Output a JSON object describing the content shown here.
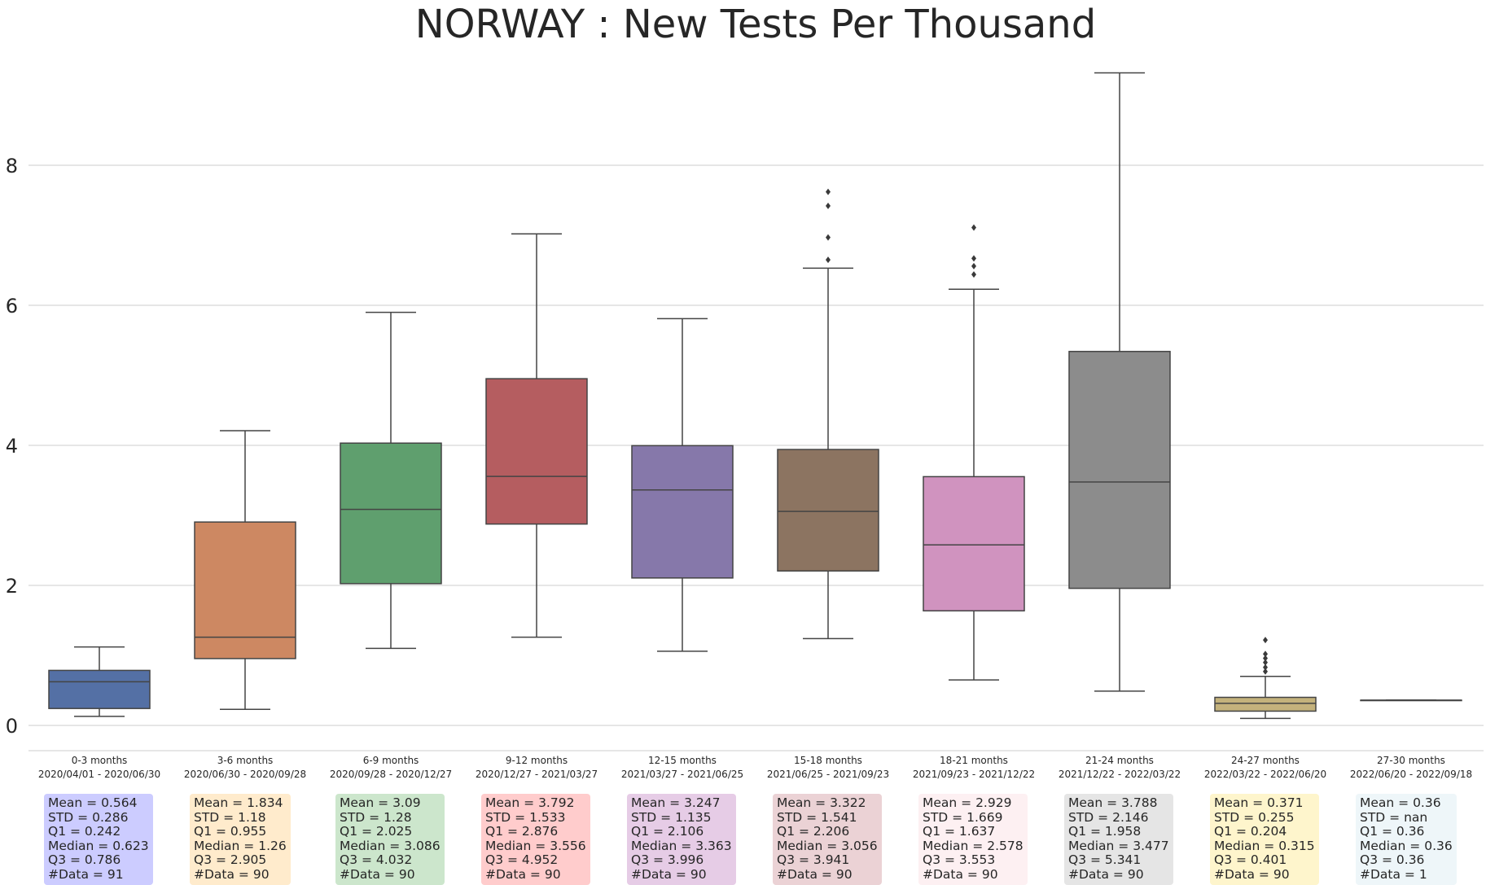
{
  "chart_data": {
    "type": "box",
    "title": "NORWAY : New Tests Per Thousand",
    "xlabel": "",
    "ylabel": "",
    "ylim": [
      -0.3,
      9.7
    ],
    "yticks": [
      "0",
      "2",
      "4",
      "6",
      "8"
    ],
    "grid": "horizontal",
    "categories": [
      {
        "label": "0-3 months",
        "range": "2020/04/01 - 2020/06/30",
        "color": "#5470a5",
        "whisker_low": 0.13,
        "q1": 0.242,
        "median": 0.623,
        "q3": 0.786,
        "whisker_high": 1.12,
        "outliers": [],
        "stats": {
          "mean": "Mean = 0.564",
          "std": "STD = 0.286",
          "q1": "Q1 = 0.242",
          "median": "Median = 0.623",
          "q3": "Q3 = 0.786",
          "count": "#Data = 91"
        },
        "box_color": "#ccccff"
      },
      {
        "label": "3-6 months",
        "range": "2020/06/30 - 2020/09/28",
        "color": "#cd8862",
        "whisker_low": 0.23,
        "q1": 0.955,
        "median": 1.26,
        "q3": 2.905,
        "whisker_high": 4.21,
        "outliers": [],
        "stats": {
          "mean": "Mean = 1.834",
          "std": "STD = 1.18",
          "q1": "Q1 = 0.955",
          "median": "Median = 1.26",
          "q3": "Q3 = 2.905",
          "count": "#Data = 90"
        },
        "box_color": "#ffebcc"
      },
      {
        "label": "6-9 months",
        "range": "2020/09/28 - 2020/12/27",
        "color": "#5f9f6e",
        "whisker_low": 1.1,
        "q1": 2.025,
        "median": 3.086,
        "q3": 4.032,
        "whisker_high": 5.9,
        "outliers": [],
        "stats": {
          "mean": "Mean = 3.09",
          "std": "STD = 1.28",
          "q1": "Q1 = 2.025",
          "median": "Median = 3.086",
          "q3": "Q3 = 4.032",
          "count": "#Data = 90"
        },
        "box_color": "#cce6cc"
      },
      {
        "label": "9-12 months",
        "range": "2020/12/27 - 2021/03/27",
        "color": "#b55d60",
        "whisker_low": 1.26,
        "q1": 2.876,
        "median": 3.556,
        "q3": 4.952,
        "whisker_high": 7.02,
        "outliers": [],
        "stats": {
          "mean": "Mean = 3.792",
          "std": "STD = 1.533",
          "q1": "Q1 = 2.876",
          "median": "Median = 3.556",
          "q3": "Q3 = 4.952",
          "count": "#Data = 90"
        },
        "box_color": "#ffcccc"
      },
      {
        "label": "12-15 months",
        "range": "2021/03/27 - 2021/06/25",
        "color": "#8678aa",
        "whisker_low": 1.06,
        "q1": 2.106,
        "median": 3.363,
        "q3": 3.996,
        "whisker_high": 5.81,
        "outliers": [],
        "stats": {
          "mean": "Mean = 3.247",
          "std": "STD = 1.135",
          "q1": "Q1 = 2.106",
          "median": "Median = 3.363",
          "q3": "Q3 = 3.996",
          "count": "#Data = 90"
        },
        "box_color": "#e6cce6"
      },
      {
        "label": "15-18 months",
        "range": "2021/06/25 - 2021/09/23",
        "color": "#8c7461",
        "whisker_low": 1.24,
        "q1": 2.206,
        "median": 3.056,
        "q3": 3.941,
        "whisker_high": 6.53,
        "outliers": [
          6.65,
          6.97,
          7.42,
          7.62
        ],
        "stats": {
          "mean": "Mean = 3.322",
          "std": "STD = 1.541",
          "q1": "Q1 = 2.206",
          "median": "Median = 3.056",
          "q3": "Q3 = 3.941",
          "count": "#Data = 90"
        },
        "box_color": "#ebd2d5"
      },
      {
        "label": "18-21 months",
        "range": "2021/09/23 - 2021/12/22",
        "color": "#d093bf",
        "whisker_low": 0.65,
        "q1": 1.637,
        "median": 2.578,
        "q3": 3.553,
        "whisker_high": 6.23,
        "outliers": [
          6.44,
          6.56,
          6.67,
          7.11
        ],
        "stats": {
          "mean": "Mean = 2.929",
          "std": "STD = 1.669",
          "q1": "Q1 = 1.637",
          "median": "Median = 2.578",
          "q3": "Q3 = 3.553",
          "count": "#Data = 90"
        },
        "box_color": "#fdf0f2"
      },
      {
        "label": "21-24 months",
        "range": "2021/12/22 - 2022/03/22",
        "color": "#8c8c8c",
        "whisker_low": 0.49,
        "q1": 1.958,
        "median": 3.477,
        "q3": 5.341,
        "whisker_high": 9.32,
        "outliers": [],
        "stats": {
          "mean": "Mean = 3.788",
          "std": "STD = 2.146",
          "q1": "Q1 = 1.958",
          "median": "Median = 3.477",
          "q3": "Q3 = 5.341",
          "count": "#Data = 90"
        },
        "box_color": "#e5e5e5"
      },
      {
        "label": "24-27 months",
        "range": "2022/03/22 - 2022/06/20",
        "color": "#c4b27c",
        "whisker_low": 0.1,
        "q1": 0.204,
        "median": 0.315,
        "q3": 0.401,
        "whisker_high": 0.7,
        "outliers": [
          0.77,
          0.83,
          0.9,
          0.96,
          1.02,
          1.22
        ],
        "stats": {
          "mean": "Mean = 0.371",
          "std": "STD = 0.255",
          "q1": "Q1 = 0.204",
          "median": "Median = 0.315",
          "q3": "Q3 = 0.401",
          "count": "#Data = 90"
        },
        "box_color": "#fef5cc"
      },
      {
        "label": "27-30 months",
        "range": "2022/06/20 - 2022/09/18",
        "color": "#7fb6d3",
        "whisker_low": 0.36,
        "q1": 0.36,
        "median": 0.36,
        "q3": 0.36,
        "whisker_high": 0.36,
        "outliers": [],
        "stats": {
          "mean": "Mean = 0.36",
          "std": "STD = nan",
          "q1": "Q1 = 0.36",
          "median": "Median = 0.36",
          "q3": "Q3 = 0.36",
          "count": "#Data = 1"
        },
        "box_color": "#eef6f9"
      }
    ]
  }
}
